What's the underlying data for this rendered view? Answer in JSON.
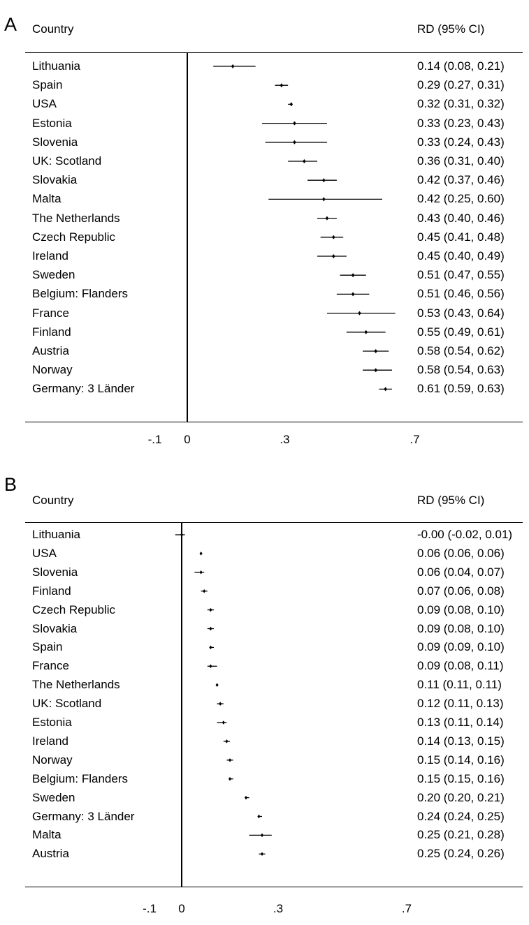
{
  "chart_data": [
    {
      "panel_label": "A",
      "type": "forest",
      "column_headers": {
        "label": "Country",
        "estimate": "RD (95% CI)"
      },
      "xticks": [
        {
          "value": -0.1,
          "label": "-.1"
        },
        {
          "value": 0,
          "label": "0"
        },
        {
          "value": 0.3,
          "label": ".3"
        },
        {
          "value": 0.7,
          "label": ".7"
        }
      ],
      "reference_line": 0,
      "rows": [
        {
          "label": "Lithuania",
          "rd": 0.14,
          "lo": 0.08,
          "hi": 0.21,
          "text": "0.14 (0.08, 0.21)"
        },
        {
          "label": "Spain",
          "rd": 0.29,
          "lo": 0.27,
          "hi": 0.31,
          "text": "0.29 (0.27, 0.31)"
        },
        {
          "label": "USA",
          "rd": 0.32,
          "lo": 0.31,
          "hi": 0.32,
          "text": "0.32 (0.31, 0.32)"
        },
        {
          "label": "Estonia",
          "rd": 0.33,
          "lo": 0.23,
          "hi": 0.43,
          "text": "0.33 (0.23, 0.43)"
        },
        {
          "label": "Slovenia",
          "rd": 0.33,
          "lo": 0.24,
          "hi": 0.43,
          "text": "0.33 (0.24, 0.43)"
        },
        {
          "label": "UK: Scotland",
          "rd": 0.36,
          "lo": 0.31,
          "hi": 0.4,
          "text": "0.36 (0.31, 0.40)"
        },
        {
          "label": "Slovakia",
          "rd": 0.42,
          "lo": 0.37,
          "hi": 0.46,
          "text": "0.42 (0.37, 0.46)"
        },
        {
          "label": "Malta",
          "rd": 0.42,
          "lo": 0.25,
          "hi": 0.6,
          "text": "0.42 (0.25, 0.60)"
        },
        {
          "label": "The Netherlands",
          "rd": 0.43,
          "lo": 0.4,
          "hi": 0.46,
          "text": "0.43 (0.40, 0.46)"
        },
        {
          "label": "Czech Republic",
          "rd": 0.45,
          "lo": 0.41,
          "hi": 0.48,
          "text": "0.45 (0.41, 0.48)"
        },
        {
          "label": "Ireland",
          "rd": 0.45,
          "lo": 0.4,
          "hi": 0.49,
          "text": "0.45 (0.40, 0.49)"
        },
        {
          "label": "Sweden",
          "rd": 0.51,
          "lo": 0.47,
          "hi": 0.55,
          "text": "0.51 (0.47, 0.55)"
        },
        {
          "label": "Belgium: Flanders",
          "rd": 0.51,
          "lo": 0.46,
          "hi": 0.56,
          "text": "0.51 (0.46, 0.56)"
        },
        {
          "label": "France",
          "rd": 0.53,
          "lo": 0.43,
          "hi": 0.64,
          "text": "0.53 (0.43, 0.64)"
        },
        {
          "label": "Finland",
          "rd": 0.55,
          "lo": 0.49,
          "hi": 0.61,
          "text": "0.55 (0.49, 0.61)"
        },
        {
          "label": "Austria",
          "rd": 0.58,
          "lo": 0.54,
          "hi": 0.62,
          "text": "0.58 (0.54, 0.62)"
        },
        {
          "label": "Norway",
          "rd": 0.58,
          "lo": 0.54,
          "hi": 0.63,
          "text": "0.58 (0.54, 0.63)"
        },
        {
          "label": "Germany: 3 Länder",
          "rd": 0.61,
          "lo": 0.59,
          "hi": 0.63,
          "text": "0.61 (0.59, 0.63)"
        }
      ]
    },
    {
      "panel_label": "B",
      "type": "forest",
      "column_headers": {
        "label": "Country",
        "estimate": "RD (95% CI)"
      },
      "xticks": [
        {
          "value": -0.1,
          "label": "-.1"
        },
        {
          "value": 0,
          "label": "0"
        },
        {
          "value": 0.3,
          "label": ".3"
        },
        {
          "value": 0.7,
          "label": ".7"
        }
      ],
      "reference_line": 0,
      "rows": [
        {
          "label": "Lithuania",
          "rd": 0.0,
          "lo": -0.02,
          "hi": 0.01,
          "text": "-0.00 (-0.02, 0.01)"
        },
        {
          "label": "USA",
          "rd": 0.06,
          "lo": 0.06,
          "hi": 0.06,
          "text": "0.06 (0.06, 0.06)"
        },
        {
          "label": "Slovenia",
          "rd": 0.06,
          "lo": 0.04,
          "hi": 0.07,
          "text": "0.06 (0.04, 0.07)"
        },
        {
          "label": "Finland",
          "rd": 0.07,
          "lo": 0.06,
          "hi": 0.08,
          "text": "0.07 (0.06, 0.08)"
        },
        {
          "label": "Czech Republic",
          "rd": 0.09,
          "lo": 0.08,
          "hi": 0.1,
          "text": "0.09 (0.08, 0.10)"
        },
        {
          "label": "Slovakia",
          "rd": 0.09,
          "lo": 0.08,
          "hi": 0.1,
          "text": "0.09 (0.08, 0.10)"
        },
        {
          "label": "Spain",
          "rd": 0.09,
          "lo": 0.09,
          "hi": 0.1,
          "text": "0.09 (0.09, 0.10)"
        },
        {
          "label": "France",
          "rd": 0.09,
          "lo": 0.08,
          "hi": 0.11,
          "text": "0.09 (0.08, 0.11)"
        },
        {
          "label": "The Netherlands",
          "rd": 0.11,
          "lo": 0.11,
          "hi": 0.11,
          "text": "0.11 (0.11, 0.11)"
        },
        {
          "label": "UK: Scotland",
          "rd": 0.12,
          "lo": 0.11,
          "hi": 0.13,
          "text": "0.12 (0.11, 0.13)"
        },
        {
          "label": "Estonia",
          "rd": 0.13,
          "lo": 0.11,
          "hi": 0.14,
          "text": "0.13 (0.11, 0.14)"
        },
        {
          "label": "Ireland",
          "rd": 0.14,
          "lo": 0.13,
          "hi": 0.15,
          "text": "0.14 (0.13, 0.15)"
        },
        {
          "label": "Norway",
          "rd": 0.15,
          "lo": 0.14,
          "hi": 0.16,
          "text": "0.15 (0.14, 0.16)"
        },
        {
          "label": "Belgium: Flanders",
          "rd": 0.15,
          "lo": 0.15,
          "hi": 0.16,
          "text": "0.15 (0.15, 0.16)"
        },
        {
          "label": "Sweden",
          "rd": 0.2,
          "lo": 0.2,
          "hi": 0.21,
          "text": "0.20 (0.20, 0.21)"
        },
        {
          "label": "Germany: 3 Länder",
          "rd": 0.24,
          "lo": 0.24,
          "hi": 0.25,
          "text": "0.24 (0.24, 0.25)"
        },
        {
          "label": "Malta",
          "rd": 0.25,
          "lo": 0.21,
          "hi": 0.28,
          "text": "0.25 (0.21, 0.28)"
        },
        {
          "label": "Austria",
          "rd": 0.25,
          "lo": 0.24,
          "hi": 0.26,
          "text": "0.25 (0.24, 0.26)"
        }
      ]
    }
  ]
}
